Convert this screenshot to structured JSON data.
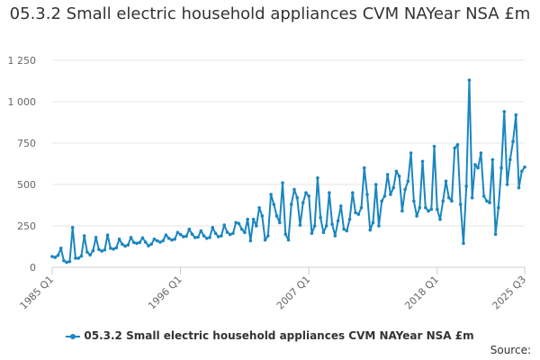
{
  "chart_data": {
    "type": "line",
    "title": "05.3.2 Small electric household appliances CVM NAYear NSA £m",
    "xlabel": "",
    "ylabel": "",
    "ylim": [
      0,
      1250
    ],
    "yticks": [
      0,
      250,
      500,
      750,
      1000,
      1250
    ],
    "ytick_labels": [
      "0",
      "250",
      "500",
      "750",
      "1 000",
      "1 250"
    ],
    "xtick_labels": [
      "1985 Q1",
      "1996 Q1",
      "2007 Q1",
      "2018 Q1",
      "2025 Q3"
    ],
    "grid": true,
    "legend_position": "bottom",
    "x_start": "1985 Q1",
    "x_end": "2025 Q3",
    "series": [
      {
        "name": "05.3.2 Small electric household appliances CVM NAYear NSA £m",
        "color": "#1a86c0",
        "values": [
          65,
          60,
          72,
          115,
          40,
          30,
          35,
          240,
          55,
          55,
          68,
          190,
          92,
          75,
          100,
          180,
          108,
          98,
          105,
          195,
          115,
          110,
          118,
          170,
          140,
          128,
          135,
          180,
          150,
          145,
          150,
          178,
          152,
          130,
          140,
          170,
          160,
          152,
          160,
          195,
          175,
          165,
          170,
          210,
          198,
          185,
          188,
          230,
          200,
          180,
          182,
          220,
          190,
          175,
          180,
          240,
          205,
          185,
          190,
          255,
          212,
          198,
          205,
          270,
          265,
          230,
          210,
          290,
          160,
          290,
          250,
          360,
          310,
          165,
          190,
          440,
          380,
          310,
          270,
          510,
          200,
          165,
          380,
          470,
          420,
          255,
          390,
          450,
          430,
          205,
          250,
          540,
          300,
          210,
          250,
          450,
          260,
          190,
          280,
          370,
          230,
          220,
          290,
          450,
          330,
          320,
          360,
          600,
          440,
          225,
          270,
          500,
          250,
          400,
          430,
          560,
          440,
          480,
          580,
          550,
          340,
          470,
          520,
          690,
          400,
          310,
          360,
          640,
          360,
          340,
          350,
          730,
          350,
          290,
          400,
          520,
          420,
          400,
          720,
          740,
          380,
          145,
          490,
          1130,
          420,
          620,
          600,
          690,
          430,
          400,
          390,
          650,
          200,
          360,
          600,
          940,
          500,
          650,
          760,
          920,
          480,
          580,
          605
        ]
      }
    ]
  },
  "legend": {
    "label": "05.3.2 Small electric household appliances CVM NAYear NSA £m"
  },
  "source": {
    "label": "Source:"
  }
}
